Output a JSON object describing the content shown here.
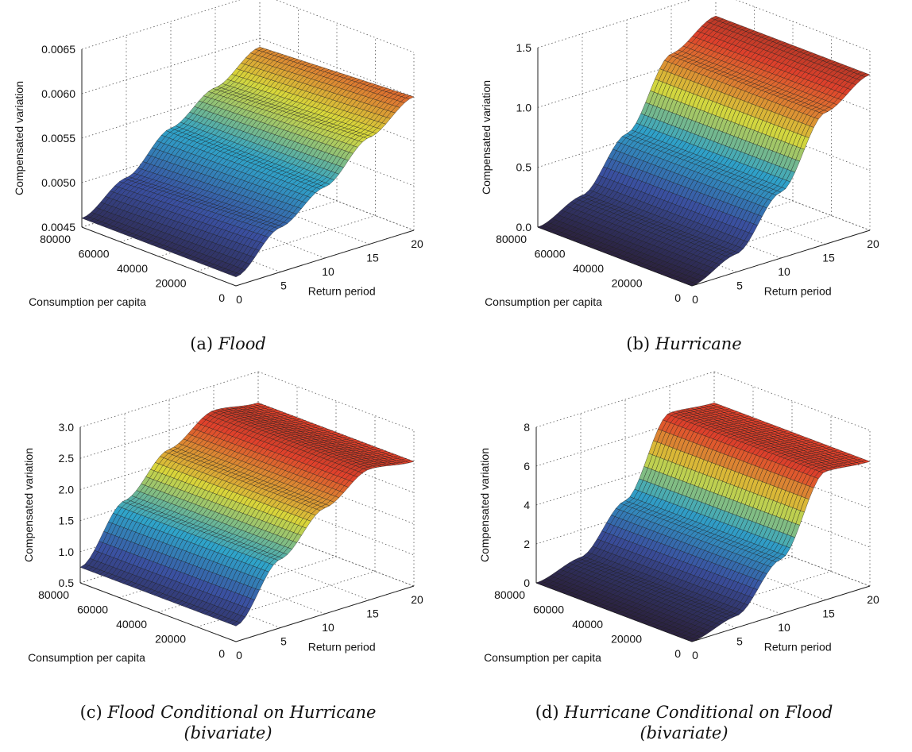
{
  "panels": [
    {
      "label": "(a)",
      "title": "Flood",
      "title_cont": ""
    },
    {
      "label": "(b)",
      "title": "Hurricane",
      "title_cont": ""
    },
    {
      "label": "(c)",
      "title": "Flood Conditional on Hurricane",
      "title_cont": "(bivariate)"
    },
    {
      "label": "(d)",
      "title": "Hurricane Conditional on Flood",
      "title_cont": "(bivariate)"
    }
  ],
  "chart_data": [
    {
      "type": "surface",
      "title": "Flood",
      "xlabel": "Return period",
      "ylabel": "Consumption per capita",
      "zlabel": "Compensated variation",
      "xlim": [
        0,
        20
      ],
      "ylim": [
        0,
        80000
      ],
      "zlim": [
        0.0045,
        0.0065
      ],
      "xticks": [
        "0",
        "5",
        "10",
        "15",
        "20"
      ],
      "yticks": [
        "0",
        "20000",
        "40000",
        "60000",
        "80000"
      ],
      "zticks": [
        "0.0045",
        "0.0050",
        "0.0055",
        "0.0060",
        "0.0065"
      ],
      "grid": true,
      "colormap": [
        "#2b2240",
        "#3a4fa0",
        "#2fa3c9",
        "#d8d83a",
        "#e0412b",
        "#6e2a20"
      ],
      "z_at_x": {
        "x": [
          0,
          5,
          10,
          15,
          20
        ],
        "z_min_consumption": [
          0.0046,
          0.005,
          0.0053,
          0.0057,
          0.006
        ],
        "z_max_consumption": [
          0.0046,
          0.0049,
          0.0053,
          0.0056,
          0.0059
        ]
      }
    },
    {
      "type": "surface",
      "title": "Hurricane",
      "xlabel": "Return period",
      "ylabel": "Consumption per capita",
      "zlabel": "Compensated variation",
      "xlim": [
        0,
        20
      ],
      "ylim": [
        0,
        80000
      ],
      "zlim": [
        0.0,
        1.5
      ],
      "xticks": [
        "0",
        "5",
        "10",
        "15",
        "20"
      ],
      "yticks": [
        "0",
        "20000",
        "40000",
        "60000",
        "80000"
      ],
      "zticks": [
        "0.0",
        "0.5",
        "1.0",
        "1.5"
      ],
      "grid": true,
      "colormap": [
        "#2b2240",
        "#3a4fa0",
        "#2fa3c9",
        "#d8d83a",
        "#e0412b",
        "#6e2a20"
      ],
      "z_at_x": {
        "x": [
          0,
          5,
          10,
          15,
          20
        ],
        "z": [
          0.0,
          0.15,
          0.55,
          1.1,
          1.3
        ]
      }
    },
    {
      "type": "surface",
      "title": "Flood Conditional on Hurricane",
      "xlabel": "Return period",
      "ylabel": "Consumption per capita",
      "zlabel": "Compensated variation",
      "xlim": [
        0,
        20
      ],
      "ylim": [
        0,
        80000
      ],
      "zlim": [
        0.5,
        3.0
      ],
      "xticks": [
        "0",
        "5",
        "10",
        "15",
        "20"
      ],
      "yticks": [
        "0",
        "20000",
        "40000",
        "60000",
        "80000"
      ],
      "zticks": [
        "0.5",
        "1.0",
        "1.5",
        "2.0",
        "2.5",
        "3.0"
      ],
      "grid": true,
      "colormap": [
        "#2b2240",
        "#3a4fa0",
        "#2fa3c9",
        "#d8d83a",
        "#e0412b",
        "#6e2a20"
      ],
      "z_at_x": {
        "x": [
          0,
          5,
          10,
          15,
          20
        ],
        "z": [
          0.75,
          1.6,
          2.2,
          2.6,
          2.5
        ]
      }
    },
    {
      "type": "surface",
      "title": "Hurricane Conditional on Flood",
      "xlabel": "Return period",
      "ylabel": "Consumption per capita",
      "zlabel": "Compensated variation",
      "xlim": [
        0,
        20
      ],
      "ylim": [
        0,
        80000
      ],
      "zlim": [
        0,
        8
      ],
      "xticks": [
        "0",
        "5",
        "10",
        "15",
        "20"
      ],
      "yticks": [
        "0",
        "20000",
        "40000",
        "60000",
        "80000"
      ],
      "zticks": [
        "0",
        "2",
        "4",
        "6",
        "8"
      ],
      "grid": true,
      "colormap": [
        "#2b2240",
        "#3a4fa0",
        "#2fa3c9",
        "#d8d83a",
        "#e0412b",
        "#6e2a20"
      ],
      "z_at_x": {
        "x": [
          0,
          5,
          10,
          15,
          20
        ],
        "z": [
          0.0,
          0.6,
          2.8,
          6.6,
          6.4
        ]
      }
    }
  ]
}
